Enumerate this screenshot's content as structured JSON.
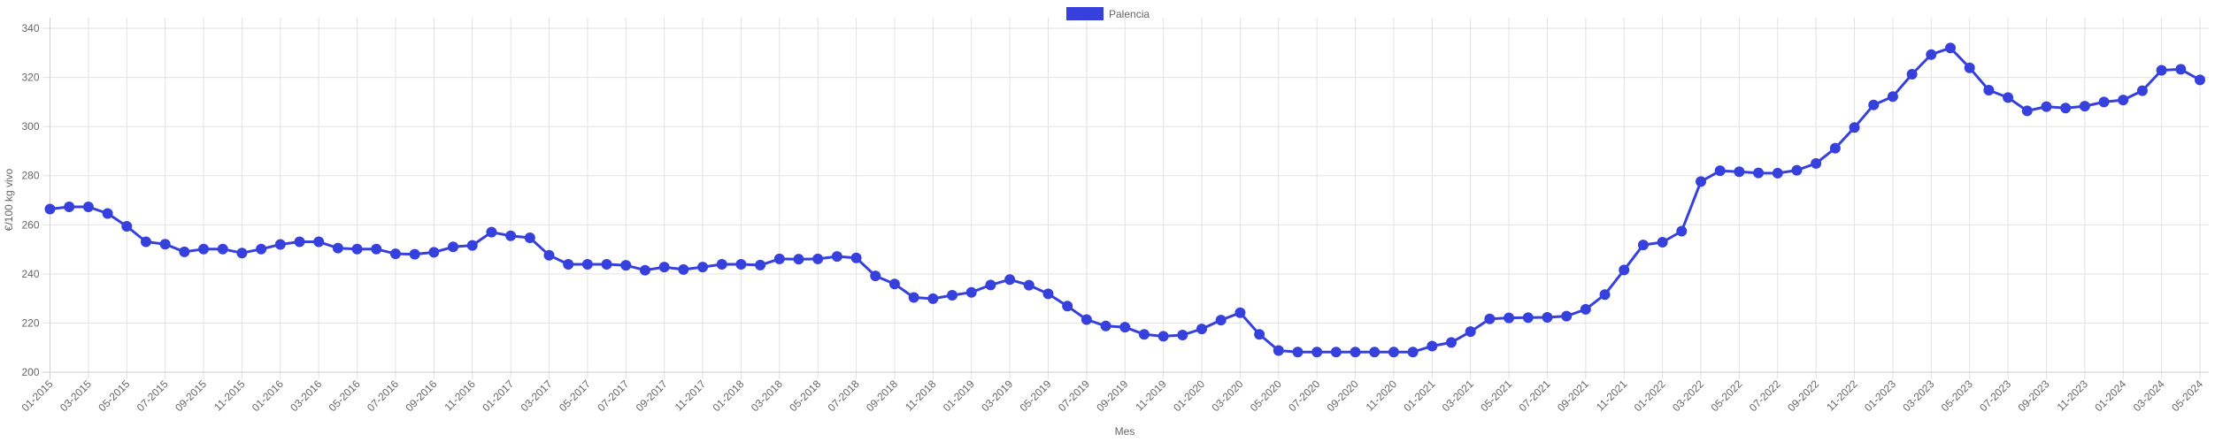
{
  "chart_data": {
    "type": "line",
    "title": "",
    "xlabel": "Mes",
    "ylabel": "€/100 kg vivo",
    "ylim": [
      200,
      340
    ],
    "yticks": [
      200,
      220,
      240,
      260,
      280,
      300,
      320,
      340
    ],
    "grid": true,
    "legend_position": "top-center",
    "x_interval": "monthly, 01-2015 to 05-2024; tick label every 2 months",
    "x_ticks": [
      "01-2015",
      "03-2015",
      "05-2015",
      "07-2015",
      "09-2015",
      "11-2015",
      "01-2016",
      "03-2016",
      "05-2016",
      "07-2016",
      "09-2016",
      "11-2016",
      "01-2017",
      "03-2017",
      "05-2017",
      "07-2017",
      "09-2017",
      "11-2017",
      "01-2018",
      "03-2018",
      "05-2018",
      "07-2018",
      "09-2018",
      "11-2018",
      "01-2019",
      "03-2019",
      "05-2019",
      "07-2019",
      "09-2019",
      "11-2019",
      "01-2020",
      "03-2020",
      "05-2020",
      "07-2020",
      "09-2020",
      "11-2020",
      "01-2021",
      "03-2021",
      "05-2021",
      "07-2021",
      "09-2021",
      "11-2021",
      "01-2022",
      "03-2022",
      "05-2022",
      "07-2022",
      "09-2022",
      "11-2022",
      "01-2023",
      "03-2023",
      "05-2023",
      "07-2023",
      "09-2023",
      "11-2023",
      "01-2024",
      "03-2024",
      "05-2024"
    ],
    "series": [
      {
        "name": "Palencia",
        "color": "#3640DD",
        "values": [
          266.4,
          267.3,
          267.3,
          264.6,
          259.4,
          253.1,
          252.1,
          249.0,
          250.1,
          250.1,
          248.5,
          250.1,
          252.0,
          253.1,
          253.1,
          250.5,
          250.1,
          250.1,
          248.2,
          248.0,
          248.8,
          251.0,
          251.6,
          257.0,
          255.5,
          254.7,
          247.6,
          243.9,
          243.9,
          243.9,
          243.5,
          241.5,
          242.8,
          241.8,
          242.8,
          243.9,
          243.9,
          243.6,
          246.1,
          246.0,
          246.1,
          247.1,
          246.5,
          239.2,
          235.9,
          230.4,
          229.9,
          231.3,
          232.5,
          235.5,
          237.7,
          235.4,
          231.9,
          226.9,
          221.4,
          218.8,
          218.3,
          215.4,
          214.6,
          215.1,
          217.6,
          221.2,
          224.2,
          215.4,
          208.8,
          208.2,
          208.2,
          208.2,
          208.2,
          208.2,
          208.2,
          208.2,
          210.6,
          212.1,
          216.5,
          221.7,
          222.1,
          222.2,
          222.3,
          222.8,
          225.6,
          231.6,
          241.6,
          251.8,
          252.9,
          257.4,
          277.6,
          282.0,
          281.6,
          281.1,
          281.0,
          282.2,
          285.0,
          291.2,
          299.6,
          308.8,
          312.2,
          321.3,
          329.3,
          332.0,
          323.9,
          314.8,
          311.8,
          306.4,
          308.1,
          307.5,
          308.3,
          310.0,
          310.8,
          314.6,
          322.9,
          323.3,
          319.0
        ]
      }
    ]
  }
}
